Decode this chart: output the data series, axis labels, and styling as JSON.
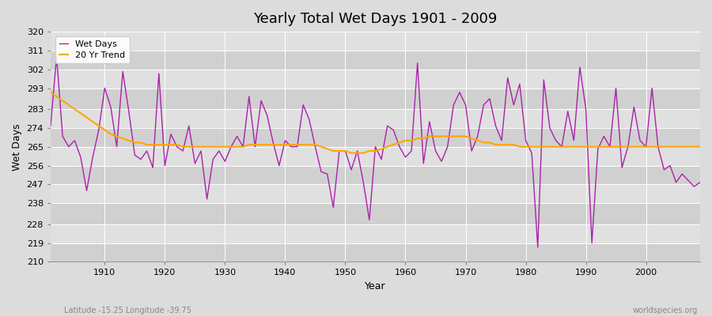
{
  "title": "Yearly Total Wet Days 1901 - 2009",
  "xlabel": "Year",
  "ylabel": "Wet Days",
  "years": [
    1901,
    1902,
    1903,
    1904,
    1905,
    1906,
    1907,
    1908,
    1909,
    1910,
    1911,
    1912,
    1913,
    1914,
    1915,
    1916,
    1917,
    1918,
    1919,
    1920,
    1921,
    1922,
    1923,
    1924,
    1925,
    1926,
    1927,
    1928,
    1929,
    1930,
    1931,
    1932,
    1933,
    1934,
    1935,
    1936,
    1937,
    1938,
    1939,
    1940,
    1941,
    1942,
    1943,
    1944,
    1945,
    1946,
    1947,
    1948,
    1949,
    1950,
    1951,
    1952,
    1953,
    1954,
    1955,
    1956,
    1957,
    1958,
    1959,
    1960,
    1961,
    1962,
    1963,
    1964,
    1965,
    1966,
    1967,
    1968,
    1969,
    1970,
    1971,
    1972,
    1973,
    1974,
    1975,
    1976,
    1977,
    1978,
    1979,
    1980,
    1981,
    1982,
    1983,
    1984,
    1985,
    1986,
    1987,
    1988,
    1989,
    1990,
    1991,
    1992,
    1993,
    1994,
    1995,
    1996,
    1997,
    1998,
    1999,
    2000,
    2001,
    2002,
    2003,
    2004,
    2005,
    2006,
    2007,
    2008,
    2009
  ],
  "wet_days": [
    275,
    308,
    270,
    265,
    268,
    260,
    244,
    260,
    273,
    293,
    284,
    265,
    301,
    282,
    261,
    259,
    263,
    255,
    300,
    256,
    271,
    265,
    263,
    275,
    257,
    263,
    240,
    259,
    263,
    258,
    265,
    270,
    265,
    289,
    265,
    287,
    280,
    267,
    256,
    268,
    265,
    265,
    285,
    278,
    265,
    253,
    252,
    236,
    263,
    263,
    254,
    263,
    248,
    230,
    265,
    259,
    275,
    273,
    265,
    260,
    263,
    305,
    257,
    277,
    263,
    258,
    265,
    285,
    291,
    285,
    263,
    270,
    285,
    288,
    275,
    268,
    298,
    285,
    295,
    268,
    262,
    217,
    297,
    274,
    268,
    265,
    282,
    268,
    303,
    283,
    219,
    264,
    270,
    265,
    293,
    255,
    265,
    284,
    268,
    265,
    293,
    265,
    254,
    256,
    248,
    252,
    249,
    246,
    248
  ],
  "trend_values": [
    291,
    289,
    287,
    285,
    283,
    281,
    279,
    277,
    275,
    273,
    271,
    270,
    269,
    268,
    267,
    267,
    266,
    266,
    266,
    266,
    266,
    266,
    265,
    265,
    265,
    265,
    265,
    265,
    265,
    265,
    265,
    265,
    265,
    266,
    266,
    266,
    266,
    266,
    266,
    266,
    266,
    266,
    266,
    266,
    266,
    265,
    264,
    263,
    263,
    263,
    262,
    262,
    262,
    263,
    263,
    264,
    265,
    266,
    267,
    268,
    268,
    269,
    269,
    270,
    270,
    270,
    270,
    270,
    270,
    270,
    269,
    268,
    267,
    267,
    266,
    266,
    266,
    266,
    265,
    265,
    265,
    265,
    265,
    265,
    265,
    265,
    265,
    265,
    265,
    265,
    265,
    265,
    265,
    265,
    265,
    265,
    265,
    265,
    265,
    265,
    265,
    265,
    265,
    265,
    265,
    265,
    265,
    265,
    265
  ],
  "wet_days_color": "#AA22AA",
  "trend_color": "#FFA500",
  "bg_color": "#DCDCDC",
  "band_color_dark": "#D0D0D0",
  "band_color_light": "#E0E0E0",
  "grid_color": "#FFFFFF",
  "ylim": [
    210,
    320
  ],
  "yticks": [
    210,
    219,
    228,
    238,
    247,
    256,
    265,
    274,
    283,
    293,
    302,
    311,
    320
  ],
  "xlim": [
    1901,
    2009
  ],
  "xticks": [
    1910,
    1920,
    1930,
    1940,
    1950,
    1960,
    1970,
    1980,
    1990,
    2000
  ],
  "footnote_left": "Latitude -15.25 Longitude -39.75",
  "footnote_right": "worldspecies.org"
}
